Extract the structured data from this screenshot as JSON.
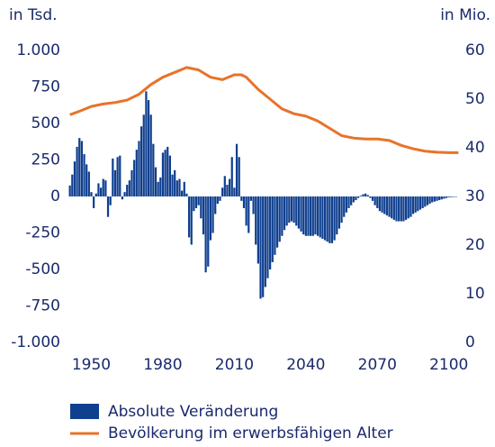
{
  "chart_data": {
    "type": "bar",
    "y_axis_title": "in Tsd.",
    "y2_axis_title": "in Mio.",
    "x": [
      1941,
      1942,
      1943,
      1944,
      1945,
      1946,
      1947,
      1948,
      1949,
      1950,
      1951,
      1952,
      1953,
      1954,
      1955,
      1956,
      1957,
      1958,
      1959,
      1960,
      1961,
      1962,
      1963,
      1964,
      1965,
      1966,
      1967,
      1968,
      1969,
      1970,
      1971,
      1972,
      1973,
      1974,
      1975,
      1976,
      1977,
      1978,
      1979,
      1980,
      1981,
      1982,
      1983,
      1984,
      1985,
      1986,
      1987,
      1988,
      1989,
      1990,
      1991,
      1992,
      1993,
      1994,
      1995,
      1996,
      1997,
      1998,
      1999,
      2000,
      2001,
      2002,
      2003,
      2004,
      2005,
      2006,
      2007,
      2008,
      2009,
      2010,
      2011,
      2012,
      2013,
      2014,
      2015,
      2016,
      2017,
      2018,
      2019,
      2020,
      2021,
      2022,
      2023,
      2024,
      2025,
      2026,
      2027,
      2028,
      2029,
      2030,
      2031,
      2032,
      2033,
      2034,
      2035,
      2036,
      2037,
      2038,
      2039,
      2040,
      2041,
      2042,
      2043,
      2044,
      2045,
      2046,
      2047,
      2048,
      2049,
      2050,
      2051,
      2052,
      2053,
      2054,
      2055,
      2056,
      2057,
      2058,
      2059,
      2060,
      2061,
      2062,
      2063,
      2064,
      2065,
      2066,
      2067,
      2068,
      2069,
      2070,
      2071,
      2072,
      2073,
      2074,
      2075,
      2076,
      2077,
      2078,
      2079,
      2080,
      2081,
      2082,
      2083,
      2084,
      2085,
      2086,
      2087,
      2088,
      2089,
      2090,
      2091,
      2092,
      2093,
      2094,
      2095,
      2096,
      2097,
      2098,
      2099,
      2100,
      2101,
      2102,
      2103
    ],
    "series": [
      {
        "name": "Absolute Veränderung",
        "type": "bar",
        "color": "#0f3f8f",
        "values": [
          75,
          150,
          240,
          340,
          400,
          380,
          290,
          220,
          170,
          30,
          -80,
          20,
          90,
          60,
          120,
          110,
          -140,
          -60,
          260,
          180,
          270,
          280,
          -20,
          30,
          80,
          110,
          180,
          250,
          320,
          380,
          480,
          560,
          720,
          660,
          560,
          360,
          200,
          100,
          130,
          300,
          320,
          340,
          280,
          150,
          180,
          110,
          120,
          40,
          100,
          20,
          -280,
          -330,
          -100,
          -80,
          -60,
          -150,
          -260,
          -520,
          -480,
          -300,
          -250,
          -120,
          -50,
          -30,
          60,
          140,
          80,
          120,
          270,
          60,
          360,
          270,
          -30,
          -80,
          -200,
          -250,
          -30,
          -120,
          -330,
          -460,
          -700,
          -690,
          -620,
          -560,
          -500,
          -450,
          -400,
          -350,
          -310,
          -270,
          -230,
          -200,
          -180,
          -170,
          -180,
          -200,
          -220,
          -240,
          -260,
          -270,
          -270,
          -270,
          -270,
          -260,
          -270,
          -280,
          -290,
          -300,
          -310,
          -320,
          -320,
          -300,
          -260,
          -220,
          -180,
          -140,
          -110,
          -80,
          -60,
          -40,
          -25,
          -10,
          5,
          15,
          20,
          10,
          -10,
          -30,
          -60,
          -80,
          -100,
          -110,
          -120,
          -130,
          -140,
          -150,
          -160,
          -170,
          -170,
          -170,
          -170,
          -160,
          -150,
          -140,
          -120,
          -110,
          -100,
          -90,
          -80,
          -70,
          -60,
          -50,
          -40,
          -35,
          -30,
          -25,
          -20,
          -15,
          -10,
          -5,
          -5,
          -3,
          -2
        ]
      },
      {
        "name": "Bevölkerung im erwerbsfähigen Alter",
        "type": "line",
        "axis": "y2",
        "color": "#e8732a",
        "x": [
          1941,
          1945,
          1950,
          1955,
          1960,
          1965,
          1970,
          1975,
          1980,
          1985,
          1990,
          1995,
          2000,
          2005,
          2010,
          2013,
          2015,
          2020,
          2025,
          2030,
          2035,
          2040,
          2045,
          2050,
          2055,
          2060,
          2065,
          2070,
          2075,
          2080,
          2085,
          2090,
          2095,
          2100,
          2104
        ],
        "values": [
          46.8,
          47.5,
          48.5,
          49,
          49.3,
          49.8,
          51,
          53,
          54.5,
          55.5,
          56.5,
          56,
          54.5,
          54,
          55,
          55,
          54.5,
          52,
          50,
          48,
          47,
          46.5,
          45.5,
          44,
          42.5,
          42,
          41.8,
          41.8,
          41.5,
          40.5,
          39.8,
          39.3,
          39.1,
          39,
          39
        ]
      }
    ],
    "xlim": [
      1940,
      2105
    ],
    "xticks": [
      1950,
      1980,
      2010,
      2040,
      2070,
      2100
    ],
    "ylim": [
      -1000,
      1000
    ],
    "yticks": [
      {
        "value": -1000,
        "label": "-1.000"
      },
      -750,
      -500,
      -250,
      0,
      250,
      500,
      750,
      {
        "value": 1000,
        "label": "1.000"
      }
    ],
    "y2lim": [
      0,
      60
    ],
    "y2ticks": [
      0,
      10,
      20,
      30,
      40,
      50,
      60
    ],
    "grid": false
  }
}
